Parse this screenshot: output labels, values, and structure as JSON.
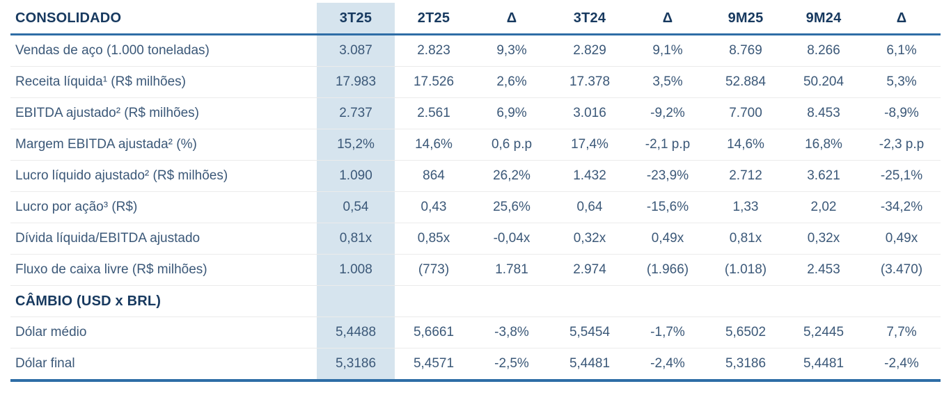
{
  "colors": {
    "background": "#ffffff",
    "header_text": "#17395f",
    "body_text": "#3b5878",
    "accent_line": "#2e6da6",
    "highlight_column": "#d6e4ee",
    "row_divider": "#ebebeb"
  },
  "table": {
    "title": "CONSOLIDADO",
    "highlighted_column": "3T25",
    "columns": [
      "3T25",
      "2T25",
      "Δ",
      "3T24",
      "Δ",
      "9M25",
      "9M24",
      "Δ"
    ],
    "rows": [
      {
        "type": "data",
        "label": "Vendas de aço (1.000 toneladas)",
        "values": [
          "3.087",
          "2.823",
          "9,3%",
          "2.829",
          "9,1%",
          "8.769",
          "8.266",
          "6,1%"
        ]
      },
      {
        "type": "data",
        "label": "Receita líquida¹ (R$ milhões)",
        "values": [
          "17.983",
          "17.526",
          "2,6%",
          "17.378",
          "3,5%",
          "52.884",
          "50.204",
          "5,3%"
        ]
      },
      {
        "type": "data",
        "label": "EBITDA ajustado² (R$ milhões)",
        "values": [
          "2.737",
          "2.561",
          "6,9%",
          "3.016",
          "-9,2%",
          "7.700",
          "8.453",
          "-8,9%"
        ]
      },
      {
        "type": "data",
        "label": "Margem EBITDA ajustada² (%)",
        "values": [
          "15,2%",
          "14,6%",
          "0,6 p.p",
          "17,4%",
          "-2,1 p.p",
          "14,6%",
          "16,8%",
          "-2,3 p.p"
        ]
      },
      {
        "type": "data",
        "label": "Lucro líquido ajustado² (R$ milhões)",
        "values": [
          "1.090",
          "864",
          "26,2%",
          "1.432",
          "-23,9%",
          "2.712",
          "3.621",
          "-25,1%"
        ]
      },
      {
        "type": "data",
        "label": "Lucro por ação³ (R$)",
        "values": [
          "0,54",
          "0,43",
          "25,6%",
          "0,64",
          "-15,6%",
          "1,33",
          "2,02",
          "-34,2%"
        ]
      },
      {
        "type": "data",
        "label": "Dívida líquida/EBITDA ajustado",
        "values": [
          "0,81x",
          "0,85x",
          "-0,04x",
          "0,32x",
          "0,49x",
          "0,81x",
          "0,32x",
          "0,49x"
        ]
      },
      {
        "type": "data",
        "label": "Fluxo de caixa livre (R$ milhões)",
        "values": [
          "1.008",
          "(773)",
          "1.781",
          "2.974",
          "(1.966)",
          "(1.018)",
          "2.453",
          "(3.470)"
        ]
      },
      {
        "type": "section",
        "label": "CÂMBIO (USD x BRL)",
        "values": [
          "",
          "",
          "",
          "",
          "",
          "",
          "",
          ""
        ]
      },
      {
        "type": "data",
        "label": "Dólar médio",
        "values": [
          "5,4488",
          "5,6661",
          "-3,8%",
          "5,5454",
          "-1,7%",
          "5,6502",
          "5,2445",
          "7,7%"
        ]
      },
      {
        "type": "data",
        "label": "Dólar final",
        "values": [
          "5,3186",
          "5,4571",
          "-2,5%",
          "5,4481",
          "-2,4%",
          "5,3186",
          "5,4481",
          "-2,4%"
        ]
      }
    ]
  }
}
